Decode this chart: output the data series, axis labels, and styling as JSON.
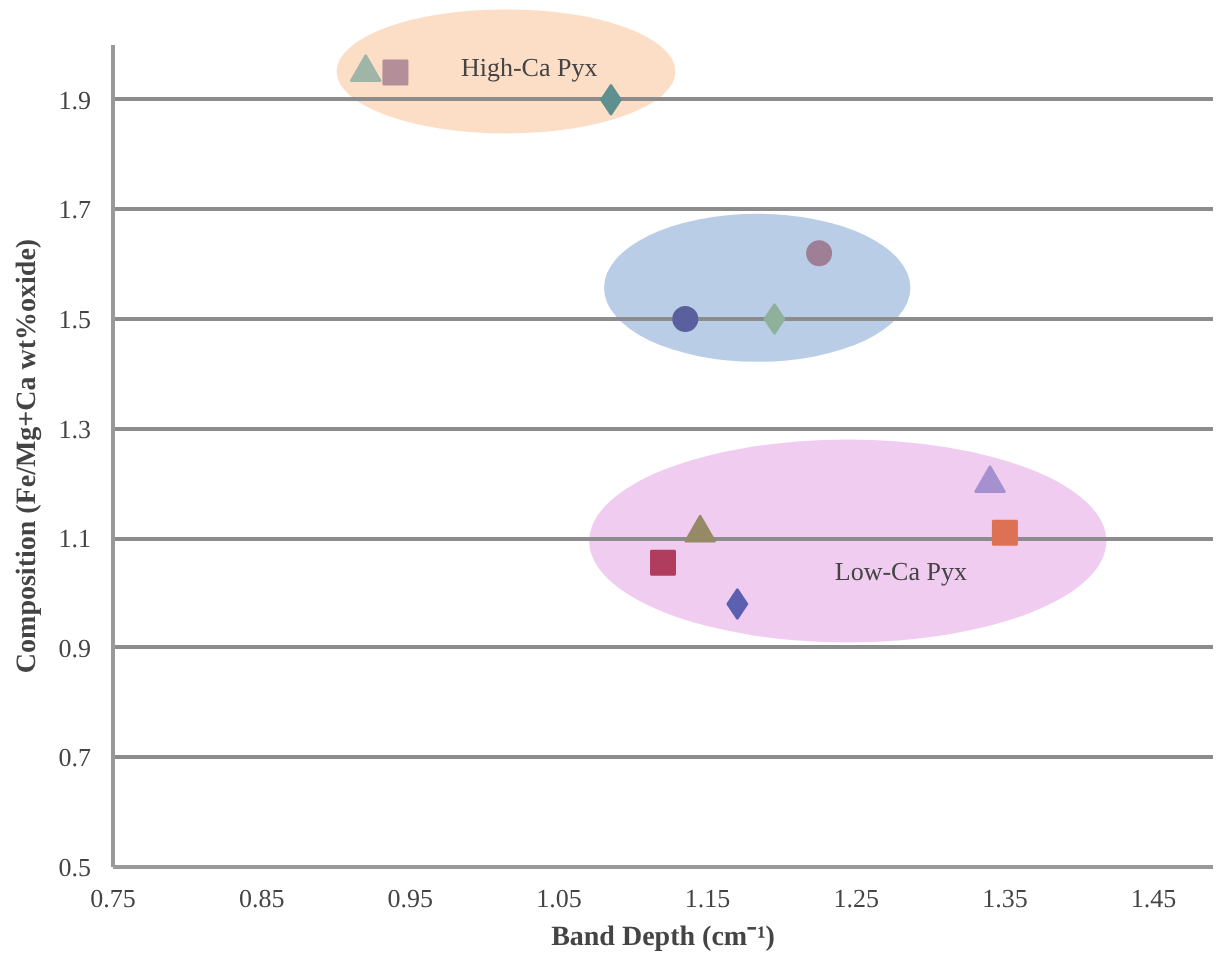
{
  "chart_data": {
    "type": "scatter",
    "xlabel": "Band Depth (cm⁻¹)",
    "ylabel": "Composition (Fe/Mg+Ca wt%oxide)",
    "xlim": [
      0.75,
      1.49
    ],
    "ylim": [
      0.5,
      2.0
    ],
    "xticks": [
      0.75,
      0.85,
      0.95,
      1.05,
      1.15,
      1.25,
      1.35,
      1.45
    ],
    "yticks": [
      0.5,
      0.7,
      0.9,
      1.1,
      1.3,
      1.5,
      1.7,
      1.9
    ],
    "grid": "y",
    "annotations": [
      "High-Ca Pyx",
      "Low-Ca Pyx"
    ],
    "series": [
      {
        "marker": "triangle",
        "color": "#9fb5a8",
        "x": [
          0.92
        ],
        "values": [
          1.95
        ]
      },
      {
        "marker": "square",
        "color": "#b48f9a",
        "x": [
          0.94
        ],
        "values": [
          1.95
        ]
      },
      {
        "marker": "diamond",
        "color": "#5e9090",
        "x": [
          1.085
        ],
        "values": [
          1.9
        ]
      },
      {
        "marker": "circle",
        "color": "#9e7f95",
        "x": [
          1.225
        ],
        "values": [
          1.62
        ]
      },
      {
        "marker": "circle",
        "color": "#5a5f9e",
        "x": [
          1.135
        ],
        "values": [
          1.5
        ]
      },
      {
        "marker": "diamond",
        "color": "#8fb09a",
        "x": [
          1.195
        ],
        "values": [
          1.5
        ]
      },
      {
        "marker": "triangle",
        "color": "#a591cf",
        "x": [
          1.34
        ],
        "values": [
          1.2
        ]
      },
      {
        "marker": "square",
        "color": "#dd7154",
        "x": [
          1.35
        ],
        "values": [
          1.11
        ]
      },
      {
        "marker": "triangle",
        "color": "#968a66",
        "x": [
          1.145
        ],
        "values": [
          1.11
        ]
      },
      {
        "marker": "square",
        "color": "#b03d5e",
        "x": [
          1.12
        ],
        "values": [
          1.055
        ]
      },
      {
        "marker": "diamond",
        "color": "#5c60b0",
        "x": [
          1.17
        ],
        "values": [
          0.98
        ]
      }
    ]
  }
}
